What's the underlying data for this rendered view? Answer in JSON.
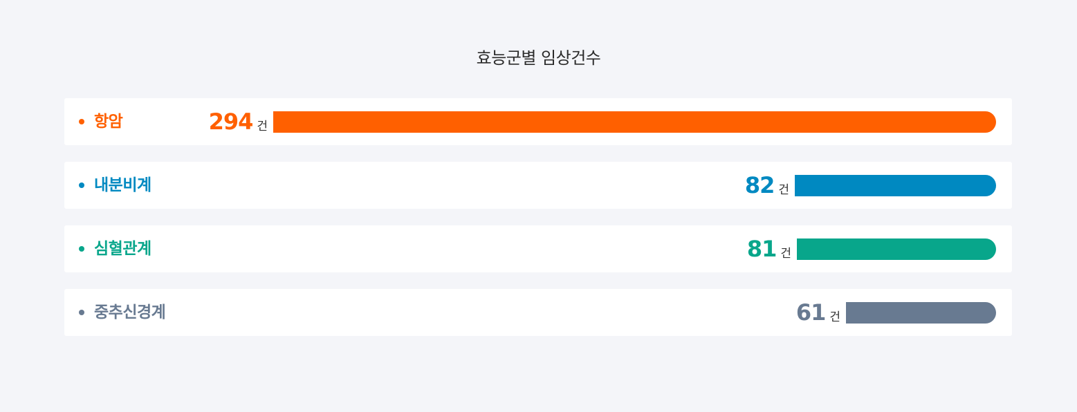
{
  "chart_data": {
    "type": "bar",
    "orientation": "horizontal",
    "title": "효능군별 임상건수",
    "unit": "건",
    "categories": [
      "항암",
      "내분비계",
      "심혈관계",
      "중추신경계"
    ],
    "values": [
      294,
      82,
      81,
      61
    ],
    "colors": [
      "#ff6000",
      "#0089c1",
      "#08a68b",
      "#687a91"
    ],
    "grid": false,
    "legend": "none"
  }
}
